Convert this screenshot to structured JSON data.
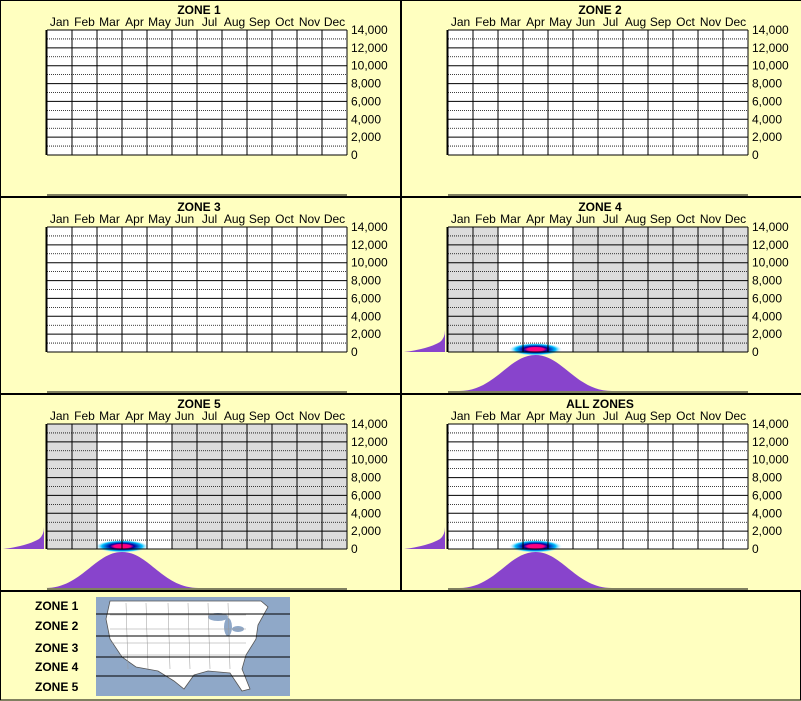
{
  "months": [
    "Jan",
    "Feb",
    "Mar",
    "Apr",
    "May",
    "Jun",
    "Jul",
    "Aug",
    "Sep",
    "Oct",
    "Nov",
    "Dec"
  ],
  "y_ticks": [
    "14,000",
    "12,000",
    "10,000",
    "8,000",
    "6,000",
    "4,000",
    "2,000",
    "0"
  ],
  "colors": {
    "background": "#ffffc0",
    "plot_active": "#ffffff",
    "plot_inactive": "#dcdcdc",
    "grid": "#000000",
    "distribution": "#8844cc",
    "density_core": "#ff0080",
    "density_edge": "#00c0ff"
  },
  "chart_data": [
    {
      "type": "heatmap",
      "title": "ZONE 1",
      "x_categories": [
        "Jan",
        "Feb",
        "Mar",
        "Apr",
        "May",
        "Jun",
        "Jul",
        "Aug",
        "Sep",
        "Oct",
        "Nov",
        "Dec"
      ],
      "ylim": [
        0,
        14000
      ],
      "active_months": [
        "Jan",
        "Feb",
        "Mar",
        "Apr",
        "May",
        "Jun",
        "Jul",
        "Aug",
        "Sep",
        "Oct",
        "Nov",
        "Dec"
      ],
      "has_data": false
    },
    {
      "type": "heatmap",
      "title": "ZONE 2",
      "x_categories": [
        "Jan",
        "Feb",
        "Mar",
        "Apr",
        "May",
        "Jun",
        "Jul",
        "Aug",
        "Sep",
        "Oct",
        "Nov",
        "Dec"
      ],
      "ylim": [
        0,
        14000
      ],
      "active_months": [
        "Jan",
        "Feb",
        "Mar",
        "Apr",
        "May",
        "Jun",
        "Jul",
        "Aug",
        "Sep",
        "Oct",
        "Nov",
        "Dec"
      ],
      "has_data": false
    },
    {
      "type": "heatmap",
      "title": "ZONE 3",
      "x_categories": [
        "Jan",
        "Feb",
        "Mar",
        "Apr",
        "May",
        "Jun",
        "Jul",
        "Aug",
        "Sep",
        "Oct",
        "Nov",
        "Dec"
      ],
      "ylim": [
        0,
        14000
      ],
      "active_months": [
        "Jan",
        "Feb",
        "Mar",
        "Apr",
        "May",
        "Jun",
        "Jul",
        "Aug",
        "Sep",
        "Oct",
        "Nov",
        "Dec"
      ],
      "has_data": false
    },
    {
      "type": "heatmap",
      "title": "ZONE 4",
      "x_categories": [
        "Jan",
        "Feb",
        "Mar",
        "Apr",
        "May",
        "Jun",
        "Jul",
        "Aug",
        "Sep",
        "Oct",
        "Nov",
        "Dec"
      ],
      "ylim": [
        0,
        14000
      ],
      "active_months": [
        "Mar",
        "Apr",
        "May"
      ],
      "has_data": true,
      "peak_month": 4.5,
      "month_spread": 0.6,
      "peak_elevation": 300,
      "elevation_spread": 450
    },
    {
      "type": "heatmap",
      "title": "ZONE 5",
      "x_categories": [
        "Jan",
        "Feb",
        "Mar",
        "Apr",
        "May",
        "Jun",
        "Jul",
        "Aug",
        "Sep",
        "Oct",
        "Nov",
        "Dec"
      ],
      "ylim": [
        0,
        14000
      ],
      "active_months": [
        "Mar",
        "Apr",
        "May"
      ],
      "has_data": true,
      "peak_month": 4.0,
      "month_spread": 0.6,
      "peak_elevation": 300,
      "elevation_spread": 450
    },
    {
      "type": "heatmap",
      "title": "ALL ZONES",
      "x_categories": [
        "Jan",
        "Feb",
        "Mar",
        "Apr",
        "May",
        "Jun",
        "Jul",
        "Aug",
        "Sep",
        "Oct",
        "Nov",
        "Dec"
      ],
      "ylim": [
        0,
        14000
      ],
      "active_months": [
        "Jan",
        "Feb",
        "Mar",
        "Apr",
        "May",
        "Jun",
        "Jul",
        "Aug",
        "Sep",
        "Oct",
        "Nov",
        "Dec"
      ],
      "has_data": true,
      "peak_month": 4.5,
      "month_spread": 0.6,
      "peak_elevation": 300,
      "elevation_spread": 450
    }
  ],
  "legend": {
    "zones": [
      "ZONE 1",
      "ZONE 2",
      "ZONE 3",
      "ZONE 4",
      "ZONE 5"
    ]
  }
}
